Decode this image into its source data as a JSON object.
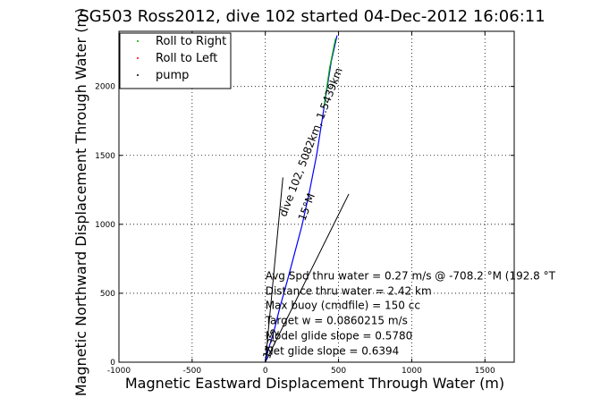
{
  "chart_data": {
    "type": "line",
    "title": "SG503 Ross2012, dive 102 started 04-Dec-2012 16:06:11",
    "xlabel": "Magnetic Eastward Displacement Through Water (m)",
    "ylabel": "Magnetic Northward Displacement Through Water (m)",
    "xlim": [
      -1000,
      1700
    ],
    "ylim": [
      0,
      2400
    ],
    "xticks": [
      -1000,
      -500,
      0,
      500,
      1000,
      1500
    ],
    "yticks": [
      0,
      500,
      1000,
      1500,
      2000
    ],
    "grid": true,
    "legend_position": "top-left",
    "legend": [
      {
        "label": "Roll to Right",
        "color": "#00aa00",
        "marker": "dot"
      },
      {
        "label": "Roll to Left",
        "color": "#ff0000",
        "marker": "dot"
      },
      {
        "label": "pump",
        "color": "#000000",
        "marker": "dot"
      }
    ],
    "series": [
      {
        "color": "#0000ff",
        "x": [
          0,
          20,
          60,
          100,
          150,
          200,
          250,
          300,
          350,
          400,
          450,
          490
        ],
        "y": [
          0,
          90,
          230,
          400,
          590,
          790,
          990,
          1230,
          1500,
          1840,
          2180,
          2370
        ]
      },
      {
        "color": "#00aa00",
        "x": [
          400,
          440,
          480
        ],
        "y": [
          1850,
          2140,
          2350
        ]
      }
    ],
    "reference_lines": [
      {
        "x": [
          0,
          120
        ],
        "y": [
          0,
          1340
        ]
      },
      {
        "x": [
          0,
          570
        ],
        "y": [
          0,
          1220
        ]
      }
    ],
    "labels": [
      {
        "text": "dive 102, 5082km, 1.5439km",
        "x": 140,
        "y": 1050,
        "rotation": -69
      },
      {
        "text": "15°M",
        "x": 270,
        "y": 1020,
        "rotation": -69
      },
      {
        "text": "153.2",
        "x": 30,
        "y": 20,
        "rotation": -72
      },
      {
        "text": "Avg Spd thru water =  0.27 m/s @ -708.2    °M (192.8 °T",
        "x": 0,
        "y": 600
      },
      {
        "text": "Distance thru water =  2.42 km",
        "x": 0,
        "y": 490
      },
      {
        "text": "Max buoy (cmdfile) = 150 cc",
        "x": 0,
        "y": 385
      },
      {
        "text": "Target w = 0.0860215 m/s",
        "x": 0,
        "y": 275
      },
      {
        "text": "Model glide slope = 0.5780",
        "x": 0,
        "y": 165
      },
      {
        "text": "Net glide slope = 0.6394",
        "x": 0,
        "y": 55
      }
    ]
  }
}
